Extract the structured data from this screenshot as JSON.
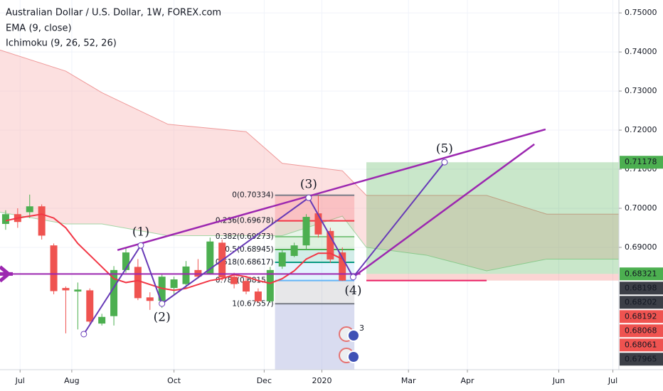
{
  "chart_data": {
    "type": "candlestick",
    "title": "Australian Dollar / U.S. Dollar, 1W, FOREX.com",
    "indicators": [
      "EMA (9, close)",
      "Ichimoku (9, 26, 52, 26)"
    ],
    "up_color": "#4caf50",
    "down_color": "#ef5350",
    "x": [
      0,
      1,
      2,
      3,
      4,
      5,
      6,
      7,
      8,
      9,
      10,
      11,
      12,
      13,
      14,
      15,
      16,
      17,
      18,
      19,
      20,
      21,
      22,
      23,
      24,
      25,
      26,
      27,
      28
    ],
    "open": [
      0.696,
      0.6985,
      0.699,
      0.7005,
      0.6905,
      0.6796,
      0.6787,
      0.679,
      0.6705,
      0.6724,
      0.6842,
      0.685,
      0.6772,
      0.6763,
      0.6796,
      0.6806,
      0.6842,
      0.6833,
      0.6912,
      0.6825,
      0.6814,
      0.6787,
      0.6762,
      0.6851,
      0.6878,
      0.6905,
      0.6987,
      0.6942,
      0.6887
    ],
    "high": [
      0.6995,
      0.7,
      0.7035,
      0.701,
      0.691,
      0.68,
      0.681,
      0.6795,
      0.673,
      0.6852,
      0.69,
      0.687,
      0.6785,
      0.683,
      0.6825,
      0.6865,
      0.687,
      0.6925,
      0.692,
      0.6835,
      0.6825,
      0.6795,
      0.685,
      0.6895,
      0.6912,
      0.6985,
      0.7033,
      0.695,
      0.69
    ],
    "low": [
      0.6945,
      0.695,
      0.6975,
      0.692,
      0.678,
      0.668,
      0.669,
      0.6705,
      0.67,
      0.67,
      0.6835,
      0.6765,
      0.674,
      0.6745,
      0.678,
      0.6795,
      0.682,
      0.683,
      0.6815,
      0.6795,
      0.678,
      0.6758,
      0.6758,
      0.6845,
      0.6875,
      0.6895,
      0.6925,
      0.686,
      0.6814
    ],
    "close": [
      0.6985,
      0.6965,
      0.7005,
      0.693,
      0.6788,
      0.679,
      0.6792,
      0.671,
      0.6722,
      0.6842,
      0.6887,
      0.677,
      0.6763,
      0.6825,
      0.6818,
      0.6851,
      0.6825,
      0.6915,
      0.6823,
      0.6806,
      0.6787,
      0.6762,
      0.6842,
      0.6887,
      0.6905,
      0.6978,
      0.6933,
      0.6869,
      0.6815
    ],
    "ema": {
      "color": "#f23645",
      "values": [
        0.6968,
        0.6975,
        0.698,
        0.6985,
        0.6975,
        0.695,
        0.691,
        0.688,
        0.685,
        0.682,
        0.681,
        0.6815,
        0.6805,
        0.6795,
        0.679,
        0.6795,
        0.6805,
        0.6815,
        0.682,
        0.683,
        0.6825,
        0.6815,
        0.6808,
        0.682,
        0.684,
        0.687,
        0.6885,
        0.6885,
        0.687
      ]
    },
    "cloud": {
      "color": "#f8bbbb",
      "x": [
        -0.47,
        5,
        8,
        13.5,
        20,
        23,
        28,
        30,
        35,
        40,
        45,
        51
      ],
      "upper": [
        0.7405,
        0.7351,
        0.7296,
        0.7215,
        0.7196,
        0.7115,
        0.7096,
        0.7033,
        0.7033,
        0.7033,
        0.6985,
        0.6985
      ],
      "lower": [
        0.699,
        0.696,
        0.696,
        0.693,
        0.693,
        0.693,
        0.698,
        0.69,
        0.688,
        0.684,
        0.687,
        0.687
      ]
    },
    "fib": {
      "x": [
        22.4,
        29
      ],
      "levels": [
        {
          "label": "0(0.70334)",
          "value": 0.70334,
          "color": "#787b86"
        },
        {
          "label": "0.236(0.69678)",
          "value": 0.69678,
          "color": "#f23645"
        },
        {
          "label": "0.382(0.69273)",
          "value": 0.69273,
          "color": "#81c784"
        },
        {
          "label": "0.5(0.68945)",
          "value": 0.68945,
          "color": "#4caf50"
        },
        {
          "label": "0.618(0.68617)",
          "value": 0.68617,
          "color": "#089981"
        },
        {
          "label": "0.786(0.68151)",
          "value": 0.68151,
          "color": "#64b5f6"
        },
        {
          "label": "1(0.67557)",
          "value": 0.67557,
          "color": "#787b86"
        }
      ]
    },
    "wave_color": "#673ab7",
    "wave_start": {
      "x": 6.5,
      "value": 0.6678
    },
    "waves": [
      {
        "label": "(1)",
        "x": 11.24,
        "value": 0.6905
      },
      {
        "label": "(2)",
        "x": 13.0,
        "value": 0.6756
      },
      {
        "label": "(3)",
        "x": 25.2,
        "value": 0.7027
      },
      {
        "label": "(4)",
        "x": 28.9,
        "value": 0.6824
      },
      {
        "label": "(5)",
        "x": 36.5,
        "value": 0.7118
      }
    ],
    "trend_color": "#9c27b0",
    "trendlines": [
      {
        "x": [
          9.3,
          44.9
        ],
        "values": [
          0.6893,
          0.7202
        ]
      },
      {
        "x": [
          28.9,
          43.97
        ],
        "values": [
          0.6824,
          0.7164
        ]
      }
    ],
    "support": {
      "value": 0.6832,
      "x": [
        -0.47,
        29.5
      ]
    },
    "position": {
      "x": [
        30,
        51
      ],
      "entry": 0.68321,
      "target": 0.71178,
      "stop": 0.6815
    },
    "events_badge": "3",
    "price_labels": [
      {
        "label": "0.71178",
        "value": 0.71178,
        "color": "#4caf50"
      },
      {
        "label": "0.68321",
        "value": 0.68321,
        "color": "#4caf50"
      },
      {
        "label": "0.68198",
        "value": 0.68198,
        "color": "#3c3f47"
      },
      {
        "label": "0.68202",
        "value": 0.68202,
        "color": "#3c3f47"
      },
      {
        "label": "0.68192",
        "value": 0.68192,
        "color": "#ef5350"
      },
      {
        "label": "0.68068",
        "value": 0.68068,
        "color": "#ef5350"
      },
      {
        "label": "0.68061",
        "value": 0.68061,
        "color": "#ef5350"
      },
      {
        "label": "0.67965",
        "value": 0.67965,
        "color": "#3c3f47"
      }
    ],
    "xlim": [
      -0.47,
      51
    ],
    "ylim": [
      0.6587,
      0.7533
    ],
    "xticks": [
      {
        "value": 1.2,
        "label": "Jul"
      },
      {
        "value": 5.5,
        "label": "Aug"
      },
      {
        "value": 14,
        "label": "Oct"
      },
      {
        "value": 21.5,
        "label": "Dec"
      },
      {
        "value": 26.3,
        "label": "2020"
      },
      {
        "value": 33.5,
        "label": "Mar"
      },
      {
        "value": 38.4,
        "label": "Apr"
      },
      {
        "value": 46,
        "label": "Jun"
      },
      {
        "value": 50.5,
        "label": "Jul"
      }
    ],
    "yticks": [
      {
        "value": 0.75,
        "label": "0.75000"
      },
      {
        "value": 0.74,
        "label": "0.74000"
      },
      {
        "value": 0.73,
        "label": "0.73000"
      },
      {
        "value": 0.72,
        "label": "0.72000"
      },
      {
        "value": 0.71,
        "label": "0.71000"
      },
      {
        "value": 0.7,
        "label": "0.70000"
      },
      {
        "value": 0.69,
        "label": "0.69000"
      }
    ],
    "grid": true
  }
}
